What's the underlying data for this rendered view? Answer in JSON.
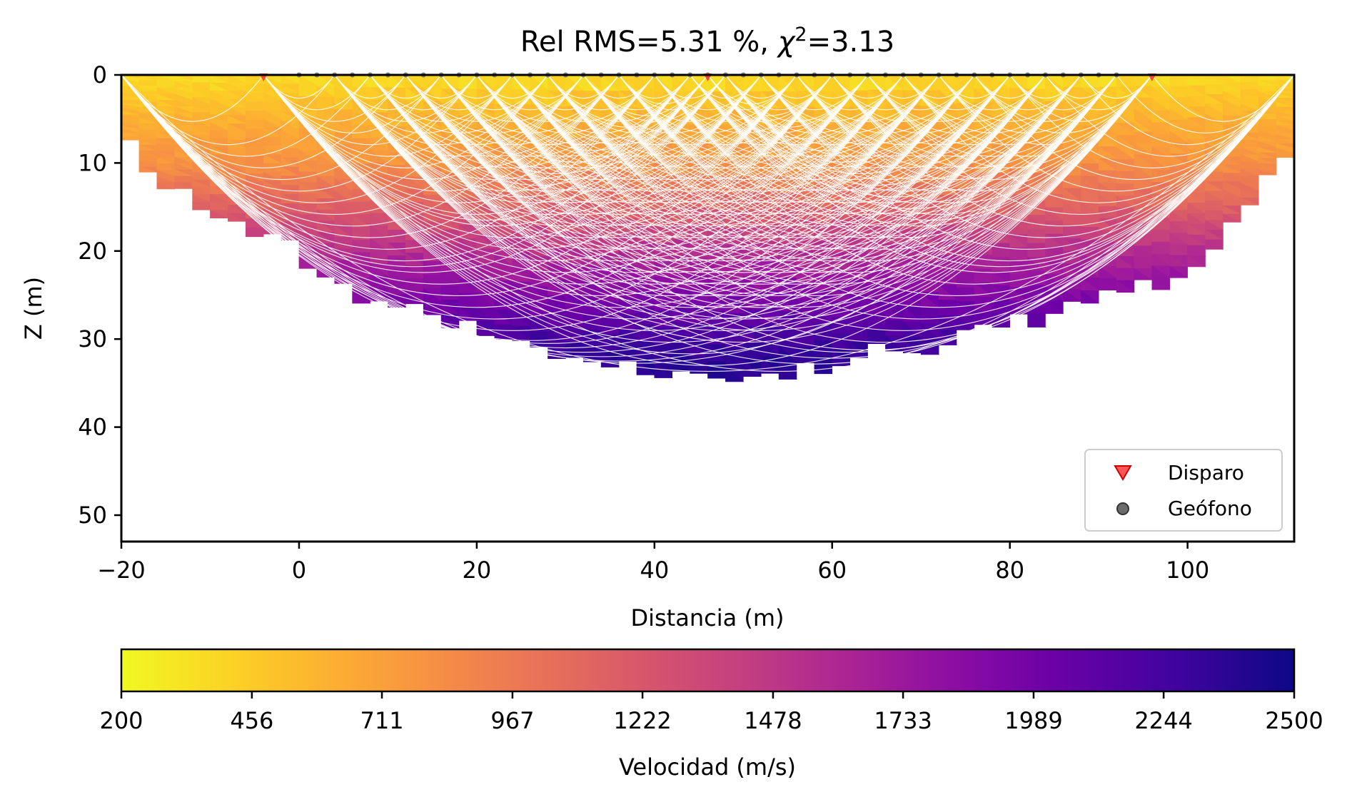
{
  "chart_data": {
    "type": "heatmap",
    "title": "Rel RMS=5.31 %, χ²=3.13",
    "title_parts": {
      "prefix": "Rel RMS=5.31 %, ",
      "chi": "χ",
      "sup": "2",
      "suffix": "=3.13"
    },
    "xlabel": "Distancia (m)",
    "ylabel": "Z (m)",
    "xlim": [
      -20,
      112
    ],
    "ylim": [
      53,
      0
    ],
    "y_inverted": true,
    "x_ticks": [
      -20,
      0,
      20,
      40,
      60,
      80,
      100
    ],
    "x_tick_labels": [
      "−20",
      "0",
      "20",
      "40",
      "60",
      "80",
      "100"
    ],
    "y_ticks": [
      0,
      10,
      20,
      30,
      40,
      50
    ],
    "y_tick_labels": [
      "0",
      "10",
      "20",
      "30",
      "40",
      "50"
    ],
    "grid": false,
    "velocity_model": {
      "colormap": "plasma_r",
      "domain_x_range": [
        -20,
        112
      ],
      "surface_z": 0,
      "max_depth_at_center": 34,
      "bottom_boundary": [
        [
          -20,
          6
        ],
        [
          -18,
          11
        ],
        [
          -12,
          14
        ],
        [
          -8,
          17
        ],
        [
          -3,
          18
        ],
        [
          2,
          22
        ],
        [
          6,
          25
        ],
        [
          10,
          26
        ],
        [
          16,
          28
        ],
        [
          22,
          30
        ],
        [
          28,
          31
        ],
        [
          36,
          33
        ],
        [
          44,
          34
        ],
        [
          50,
          34.5
        ],
        [
          56,
          34
        ],
        [
          62,
          32
        ],
        [
          70,
          31
        ],
        [
          78,
          29
        ],
        [
          86,
          27
        ],
        [
          92,
          25
        ],
        [
          98,
          23
        ],
        [
          102,
          20
        ],
        [
          106,
          16
        ],
        [
          108,
          13
        ],
        [
          110,
          10
        ],
        [
          112,
          9.5
        ]
      ],
      "velocity_depth_profile": [
        [
          0,
          350
        ],
        [
          5,
          600
        ],
        [
          10,
          800
        ],
        [
          15,
          1150
        ],
        [
          20,
          1550
        ],
        [
          25,
          1900
        ],
        [
          30,
          2250
        ],
        [
          35,
          2450
        ]
      ]
    },
    "legend": {
      "placement": "lower-right",
      "entries": [
        {
          "label": "Disparo",
          "color": "#ff2a2a",
          "marker": "triangle-down"
        },
        {
          "label": "Geófono",
          "color": "#6b6b6b",
          "marker": "circle"
        }
      ]
    },
    "shots": {
      "x": [
        -4,
        46,
        96
      ]
    },
    "geophones": {
      "x": [
        0,
        2,
        4,
        6,
        8,
        10,
        12,
        14,
        16,
        18,
        20,
        22,
        24,
        26,
        28,
        30,
        32,
        34,
        36,
        38,
        40,
        42,
        44,
        46,
        48,
        50,
        52,
        54,
        56,
        58,
        60,
        62,
        64,
        66,
        68,
        70,
        72,
        74,
        76,
        78,
        80,
        82,
        84,
        86,
        88,
        90,
        92
      ]
    },
    "ray_surface_points": [
      -20,
      -4,
      4,
      8,
      12,
      16,
      20,
      24,
      28,
      32,
      36,
      40,
      44,
      46,
      48,
      52,
      56,
      60,
      64,
      68,
      72,
      76,
      80,
      84,
      88,
      92,
      96,
      112
    ],
    "colorbar": {
      "label": "Velocidad (m/s)",
      "range": [
        200,
        2500
      ],
      "ticks": [
        200,
        456,
        711,
        967,
        1222,
        1478,
        1733,
        1989,
        2244,
        2500
      ],
      "tick_labels": [
        "200",
        "456",
        "711",
        "967",
        "1222",
        "1478",
        "1733",
        "1989",
        "2244",
        "2500"
      ],
      "orientation": "horizontal"
    },
    "colors": {
      "plasma_stops": [
        "#0d0887",
        "#46039f",
        "#7201a8",
        "#9c179e",
        "#bd3786",
        "#d8576b",
        "#ed7953",
        "#fb9f3a",
        "#fdca26",
        "#f0f921"
      ],
      "ray_color": "#ffffff"
    }
  }
}
